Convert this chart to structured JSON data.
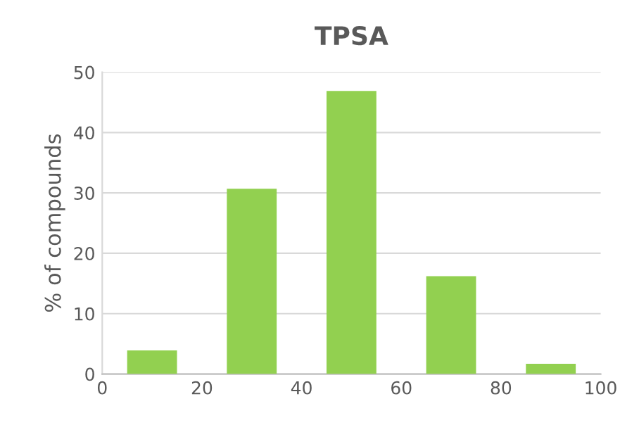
{
  "chart_data": {
    "type": "histogram",
    "title": "TPSA",
    "ylabel": "% of compounds",
    "bins": [
      0,
      20,
      40,
      60,
      80,
      100
    ],
    "values": [
      3.9,
      30.7,
      46.9,
      16.2,
      1.7
    ],
    "color": "#92d050",
    "xlim": [
      0,
      100
    ],
    "xticks": [
      0,
      20,
      40,
      60,
      80,
      100
    ],
    "ylim": [
      0,
      50
    ],
    "yticks": [
      0,
      10,
      20,
      30,
      40,
      50
    ],
    "grid": "y"
  }
}
